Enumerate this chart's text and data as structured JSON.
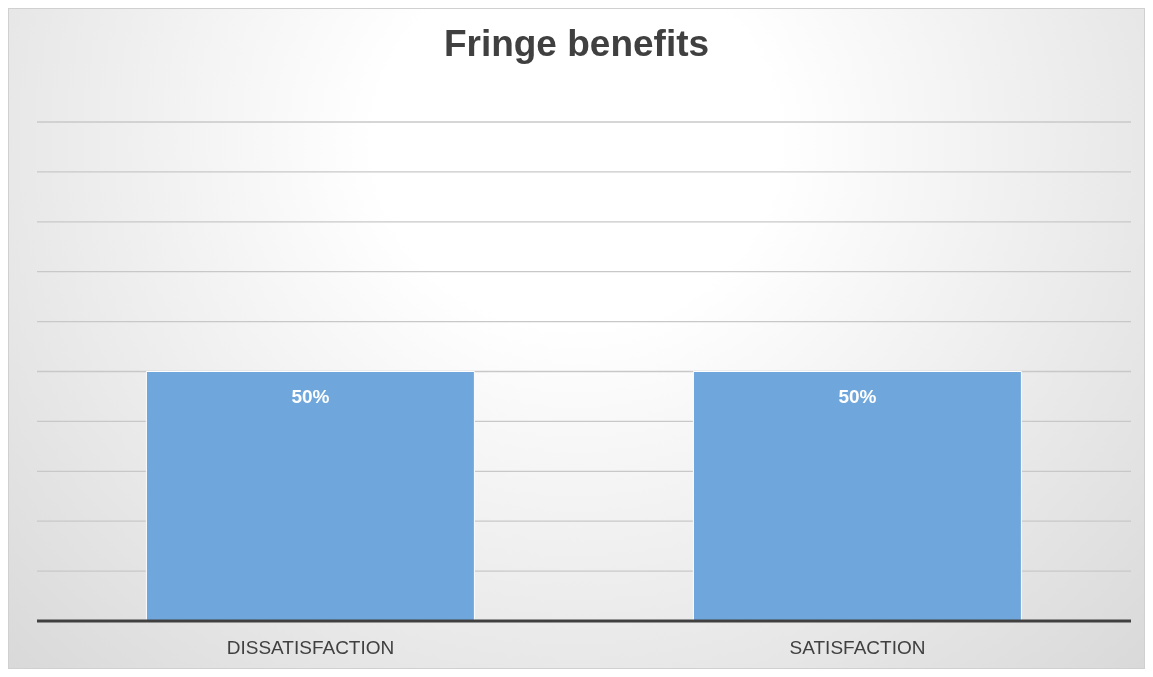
{
  "chart_data": {
    "type": "bar",
    "title": "Fringe benefits",
    "categories": [
      "DISSATISFACTION",
      "SATISFACTION"
    ],
    "values": [
      50,
      50
    ],
    "value_labels": [
      "50%",
      "50%"
    ],
    "color": "#6fa7dc",
    "ylim": [
      0,
      100
    ],
    "yticks": [
      {
        "value": 0,
        "label": null
      },
      {
        "value": 10,
        "label": null
      },
      {
        "value": 20,
        "label": null
      },
      {
        "value": 30,
        "label": null
      },
      {
        "value": 40,
        "label": null
      },
      {
        "value": 50,
        "label": null
      },
      {
        "value": 60,
        "label": null
      },
      {
        "value": 70,
        "label": null
      },
      {
        "value": 80,
        "label": null
      },
      {
        "value": 90,
        "label": null
      },
      {
        "value": 100,
        "label": null
      }
    ],
    "grid": "y",
    "tick_labels": "x"
  }
}
